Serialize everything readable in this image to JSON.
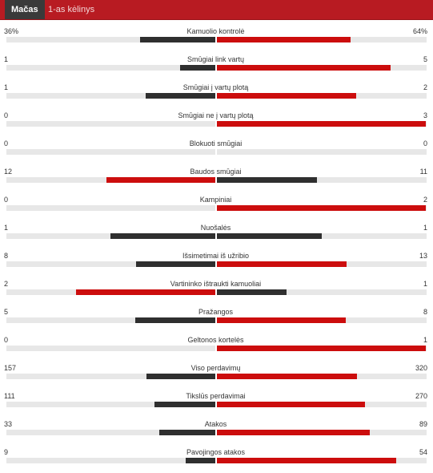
{
  "tabs": [
    {
      "label": "Mačas",
      "active": true
    },
    {
      "label": "1-as kėlinys",
      "active": false
    }
  ],
  "colors": {
    "leader": "#cc0d0d",
    "trailer": "#2f2f2f",
    "track": "#e7e7e7",
    "header": "#b81b22"
  },
  "stats": [
    {
      "label": "Kamuolio kontrolė",
      "home": "36%",
      "away": "64%",
      "home_share": 0.36,
      "away_share": 0.64
    },
    {
      "label": "Smūgiai link vartų",
      "home": "1",
      "away": "5",
      "home_share": 0.167,
      "away_share": 0.833
    },
    {
      "label": "Smūgiai į vartų plotą",
      "home": "1",
      "away": "2",
      "home_share": 0.333,
      "away_share": 0.667
    },
    {
      "label": "Smūgiai ne į vartų plotą",
      "home": "0",
      "away": "3",
      "home_share": 0,
      "away_share": 1
    },
    {
      "label": "Blokuoti smūgiai",
      "home": "0",
      "away": "0",
      "home_share": 0,
      "away_share": 0
    },
    {
      "label": "Baudos smūgiai",
      "home": "12",
      "away": "11",
      "home_share": 0.522,
      "away_share": 0.478
    },
    {
      "label": "Kampiniai",
      "home": "0",
      "away": "2",
      "home_share": 0,
      "away_share": 1
    },
    {
      "label": "Nuošalės",
      "home": "1",
      "away": "1",
      "home_share": 0.5,
      "away_share": 0.5
    },
    {
      "label": "Išsimetimai iš užribio",
      "home": "8",
      "away": "13",
      "home_share": 0.381,
      "away_share": 0.619
    },
    {
      "label": "Vartininko ištraukti kamuoliai",
      "home": "2",
      "away": "1",
      "home_share": 0.667,
      "away_share": 0.333
    },
    {
      "label": "Pražangos",
      "home": "5",
      "away": "8",
      "home_share": 0.385,
      "away_share": 0.615
    },
    {
      "label": "Geltonos kortelės",
      "home": "0",
      "away": "1",
      "home_share": 0,
      "away_share": 1
    },
    {
      "label": "Viso perdavimų",
      "home": "157",
      "away": "320",
      "home_share": 0.329,
      "away_share": 0.671
    },
    {
      "label": "Tikslūs perdavimai",
      "home": "111",
      "away": "270",
      "home_share": 0.291,
      "away_share": 0.709
    },
    {
      "label": "Atakos",
      "home": "33",
      "away": "89",
      "home_share": 0.27,
      "away_share": 0.73
    },
    {
      "label": "Pavojingos atakos",
      "home": "9",
      "away": "54",
      "home_share": 0.143,
      "away_share": 0.857
    }
  ]
}
